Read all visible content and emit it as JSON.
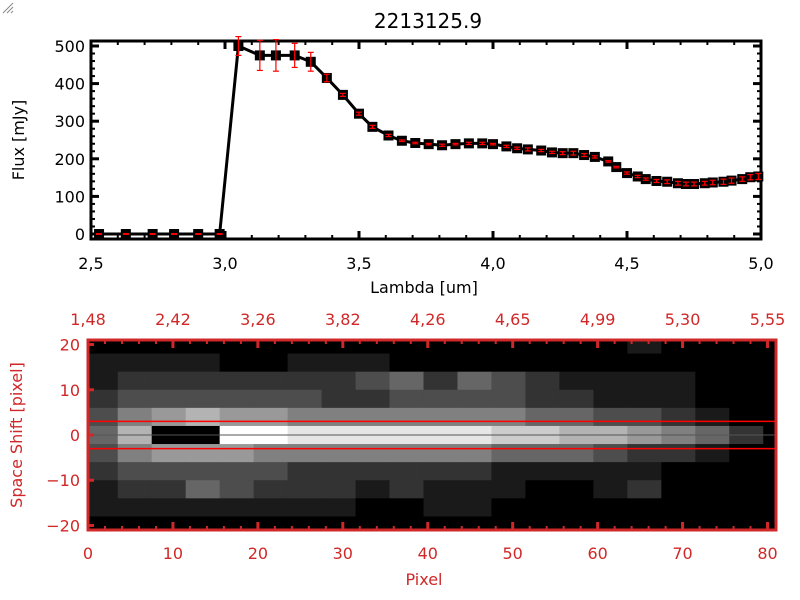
{
  "chart_data": [
    {
      "type": "line",
      "title": "2213125.9",
      "xlabel": "Lambda [um]",
      "ylabel": "Flux [mJy]",
      "xlim": [
        2.5,
        5.0
      ],
      "ylim": [
        -10,
        510
      ],
      "xticks": [
        "2.5",
        "3.0",
        "3.5",
        "4.0",
        "4.5",
        "5.0"
      ],
      "yticks": [
        "0",
        "100",
        "200",
        "300",
        "400",
        "500"
      ],
      "line_color": "#000000",
      "errorbar_color": "#ff0000",
      "marker": "filled-square",
      "x": [
        2.53,
        2.63,
        2.73,
        2.81,
        2.9,
        2.98,
        3.05,
        3.13,
        3.19,
        3.26,
        3.32,
        3.38,
        3.44,
        3.5,
        3.55,
        3.61,
        3.66,
        3.71,
        3.76,
        3.81,
        3.86,
        3.91,
        3.96,
        4.0,
        4.05,
        4.09,
        4.13,
        4.18,
        4.22,
        4.26,
        4.3,
        4.34,
        4.38,
        4.43,
        4.46,
        4.5,
        4.54,
        4.57,
        4.61,
        4.65,
        4.69,
        4.72,
        4.75,
        4.79,
        4.82,
        4.86,
        4.89,
        4.93,
        4.96,
        4.99
      ],
      "y": [
        0,
        0,
        0,
        0,
        0,
        0,
        500,
        475,
        475,
        475,
        458,
        415,
        370,
        320,
        285,
        262,
        248,
        242,
        239,
        236,
        239,
        241,
        241,
        239,
        233,
        228,
        225,
        222,
        217,
        215,
        215,
        210,
        205,
        193,
        178,
        162,
        153,
        146,
        141,
        139,
        135,
        133,
        133,
        135,
        137,
        139,
        142,
        146,
        151,
        153
      ],
      "yerr": [
        1,
        1,
        1,
        1,
        1,
        1,
        25,
        40,
        42,
        32,
        25,
        10,
        4,
        4,
        4,
        3,
        2,
        2,
        2,
        3,
        2,
        3,
        3,
        2,
        3,
        3,
        4,
        3,
        3,
        4,
        5,
        4,
        3,
        2,
        2,
        3,
        3,
        3,
        4,
        5,
        5,
        5,
        5,
        5,
        6,
        7,
        7,
        6,
        7,
        8
      ]
    },
    {
      "type": "heatmap",
      "xlabel": "Pixel",
      "ylabel": "Space Shift [pixel]",
      "xlim": [
        0,
        81
      ],
      "ylim": [
        -21,
        21
      ],
      "xticks": [
        "0",
        "10",
        "20",
        "30",
        "40",
        "50",
        "60",
        "70",
        "80"
      ],
      "yticks": [
        "20",
        "10",
        "0",
        "-10",
        "-20"
      ],
      "top_axis_ticks": [
        "1.48",
        "2.42",
        "3.26",
        "3.82",
        "4.26",
        "4.65",
        "4.99",
        "5.30",
        "5.55"
      ],
      "axis_color": "#d02828",
      "colormap": "grayscale",
      "aperture_lines": [
        3,
        -3
      ],
      "aperture_line_color": "#ff0000",
      "center_line": 0,
      "center_line_color": "#000000",
      "cell_x": [
        0,
        4,
        8,
        12,
        16,
        20,
        24,
        28,
        32,
        36,
        40,
        44,
        48,
        52,
        56,
        60,
        64,
        68,
        72,
        76,
        80
      ],
      "cell_y": [
        20,
        16,
        12,
        8,
        4,
        0,
        -4,
        -8,
        -12,
        -16,
        -20
      ],
      "intensity_max": 10,
      "values": [
        [
          0,
          0,
          0,
          0,
          0,
          0,
          0,
          0,
          0,
          0,
          0,
          0,
          0,
          0,
          0,
          0,
          1,
          0,
          0,
          0,
          0
        ],
        [
          1,
          1,
          1,
          1,
          0,
          0,
          1,
          1,
          1,
          0,
          0,
          0,
          0,
          0,
          0,
          0,
          0,
          0,
          0,
          0,
          0
        ],
        [
          1,
          2,
          2,
          2,
          2,
          2,
          2,
          2,
          3,
          4,
          2,
          4,
          3,
          2,
          1,
          1,
          1,
          1,
          0,
          0,
          0
        ],
        [
          2,
          3,
          3,
          3,
          3,
          3,
          3,
          2,
          2,
          3,
          3,
          3,
          3,
          2,
          2,
          1,
          1,
          1,
          0,
          0,
          0
        ],
        [
          3,
          5,
          6,
          7,
          6,
          6,
          5,
          5,
          5,
          5,
          5,
          5,
          5,
          4,
          4,
          3,
          3,
          2,
          1,
          0,
          0
        ],
        [
          4,
          7,
          0,
          0,
          10,
          10,
          9,
          9,
          9,
          9,
          9,
          9,
          8,
          8,
          7,
          7,
          6,
          5,
          4,
          2,
          0
        ],
        [
          3,
          5,
          6,
          6,
          6,
          5,
          5,
          5,
          5,
          5,
          5,
          5,
          4,
          4,
          4,
          3,
          2,
          2,
          1,
          0,
          0
        ],
        [
          2,
          3,
          3,
          3,
          3,
          3,
          2,
          2,
          2,
          2,
          2,
          2,
          1,
          1,
          1,
          1,
          1,
          0,
          0,
          0,
          0
        ],
        [
          1,
          2,
          2,
          4,
          3,
          2,
          2,
          2,
          1,
          2,
          1,
          1,
          1,
          0,
          0,
          1,
          2,
          0,
          0,
          0,
          0
        ],
        [
          1,
          1,
          1,
          1,
          1,
          1,
          1,
          1,
          0,
          0,
          1,
          1,
          0,
          0,
          0,
          0,
          0,
          0,
          0,
          0,
          0
        ],
        [
          0,
          0,
          0,
          0,
          0,
          0,
          0,
          0,
          0,
          0,
          0,
          0,
          0,
          0,
          0,
          0,
          0,
          0,
          0,
          0,
          0
        ]
      ]
    }
  ]
}
